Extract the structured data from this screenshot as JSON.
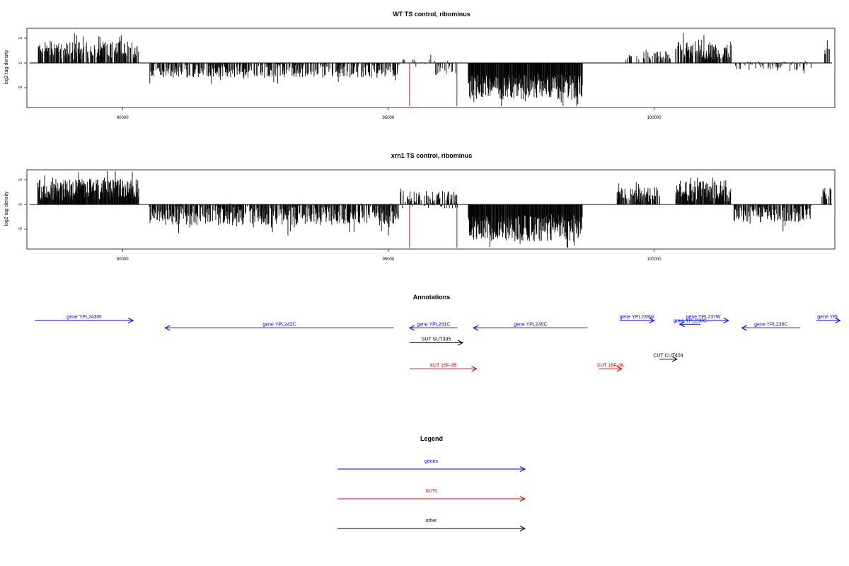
{
  "chart_data": [
    {
      "type": "bar",
      "title": "WT TS control, ribominus",
      "xlabel": "",
      "ylabel": "log2 tag density",
      "xlim": [
        88200,
        103400
      ],
      "ylim": [
        -9,
        7
      ],
      "xticks": [
        90000,
        95000,
        100000
      ],
      "xtick_labels": [
        "90000",
        "95000",
        "100000"
      ],
      "yticks": [
        -5,
        0,
        5
      ],
      "ytick_labels": [
        "-5",
        "0",
        "5"
      ],
      "baseline": [
        88250,
        103350
      ],
      "segments": [
        {
          "from": 88400,
          "to": 90300,
          "mean": 2.5,
          "amp": 1.8,
          "density": 0.7
        },
        {
          "from": 90500,
          "to": 95200,
          "mean": -1.5,
          "amp": 1.5,
          "density": 0.55
        },
        {
          "from": 95200,
          "to": 95400,
          "mean": 0.2,
          "amp": 0.6,
          "density": 0.15
        },
        {
          "from": 95400,
          "to": 95850,
          "mean": 0.5,
          "amp": 1.2,
          "density": 0.15
        },
        {
          "from": 95850,
          "to": 96300,
          "mean": -1.0,
          "amp": 1.5,
          "density": 0.35
        },
        {
          "from": 96500,
          "to": 98650,
          "mean": -4.8,
          "amp": 2.6,
          "density": 1.0
        },
        {
          "from": 99300,
          "to": 99800,
          "mean": 1.1,
          "amp": 0.6,
          "density": 0.25
        },
        {
          "from": 99800,
          "to": 100300,
          "mean": 1.6,
          "amp": 1.2,
          "density": 0.4
        },
        {
          "from": 100400,
          "to": 101450,
          "mean": 2.5,
          "amp": 1.8,
          "density": 0.7
        },
        {
          "from": 101500,
          "to": 102950,
          "mean": -0.6,
          "amp": 1.0,
          "density": 0.35
        },
        {
          "from": 103200,
          "to": 103330,
          "mean": 2.2,
          "amp": 1.3,
          "density": 0.5
        }
      ],
      "markers": [
        {
          "x": 95400,
          "y": -9,
          "color": "#e00000"
        },
        {
          "x": 96290,
          "y": -9,
          "color": "#e00000"
        }
      ],
      "bar_color": "#000000"
    },
    {
      "type": "bar",
      "title": "xrn1 TS control, ribominus",
      "xlabel": "",
      "ylabel": "log2 tag density",
      "xlim": [
        88200,
        103400
      ],
      "ylim": [
        -9,
        7
      ],
      "xticks": [
        90000,
        95000,
        100000
      ],
      "xtick_labels": [
        "90000",
        "95000",
        "100000"
      ],
      "yticks": [
        -5,
        0,
        5
      ],
      "ytick_labels": [
        "-5",
        "0",
        "5"
      ],
      "baseline": [
        88250,
        103350
      ],
      "segments": [
        {
          "from": 88400,
          "to": 90300,
          "mean": 3.0,
          "amp": 2.2,
          "density": 1.0
        },
        {
          "from": 90500,
          "to": 95200,
          "mean": -2.0,
          "amp": 2.2,
          "density": 0.8
        },
        {
          "from": 95200,
          "to": 96300,
          "mean": 1.0,
          "amp": 1.8,
          "density": 0.5
        },
        {
          "from": 96500,
          "to": 98650,
          "mean": -4.8,
          "amp": 2.8,
          "density": 1.0
        },
        {
          "from": 99300,
          "to": 100100,
          "mean": 2.0,
          "amp": 1.5,
          "density": 0.7
        },
        {
          "from": 100400,
          "to": 101450,
          "mean": 2.8,
          "amp": 2.2,
          "density": 0.9
        },
        {
          "from": 101500,
          "to": 102950,
          "mean": -1.8,
          "amp": 1.8,
          "density": 0.75
        },
        {
          "from": 103150,
          "to": 103330,
          "mean": 2.2,
          "amp": 1.3,
          "density": 0.6
        }
      ],
      "markers": [
        {
          "x": 95400,
          "y": -9,
          "color": "#e00000"
        },
        {
          "x": 96290,
          "y": -9,
          "color": "#e00000"
        }
      ],
      "bar_color": "#000000"
    }
  ],
  "annotations": {
    "title": "Annotations",
    "tracks": [
      {
        "label": "gene YPL243W",
        "from": 88350,
        "to": 90200,
        "row": 0,
        "dir": "right",
        "color": "#0000ff"
      },
      {
        "label": "gene YPL242C",
        "from": 90800,
        "to": 95100,
        "row": 1,
        "dir": "left",
        "color": "#0000ff"
      },
      {
        "label": "gene YPL241C",
        "from": 95400,
        "to": 96300,
        "row": 1,
        "dir": "left",
        "color": "#0000ff"
      },
      {
        "label": "gene YPL240C",
        "from": 96600,
        "to": 98750,
        "row": 1,
        "dir": "left",
        "color": "#0000ff"
      },
      {
        "label": "gene YPL239W",
        "from": 99350,
        "to": 100000,
        "row": 0,
        "dir": "right",
        "color": "#0000ff"
      },
      {
        "label": "gene YPL237W",
        "from": 100450,
        "to": 101400,
        "row": 0,
        "dir": "right",
        "color": "#0000ff"
      },
      {
        "label": "gene YPL238C",
        "from": 100480,
        "to": 100870,
        "row": 0.5,
        "dir": "left",
        "color": "#0000ff"
      },
      {
        "label": "gene YPL236C",
        "from": 101650,
        "to": 102750,
        "row": 1,
        "dir": "left",
        "color": "#0000ff"
      },
      {
        "label": "gene YPL",
        "from": 103050,
        "to": 103500,
        "row": 0,
        "dir": "right",
        "color": "#0000ff"
      },
      {
        "label": "SUT SUT395",
        "from": 95400,
        "to": 96400,
        "row": 3,
        "dir": "right",
        "color": "#000000"
      },
      {
        "label": "CUT CUT404",
        "from": 100100,
        "to": 100430,
        "row": 5.2,
        "dir": "right",
        "color": "#000000"
      },
      {
        "label": "XUT 16F-35",
        "from": 95400,
        "to": 96660,
        "row": 6.5,
        "dir": "right",
        "color": "#e00000"
      },
      {
        "label": "XUT 16F-36",
        "from": 98960,
        "to": 99390,
        "row": 6.5,
        "dir": "right",
        "color": "#e00000"
      }
    ]
  },
  "legend": {
    "title": "Legend",
    "items": [
      {
        "label": "genes",
        "color": "#0000ff"
      },
      {
        "label": "XUTs",
        "color": "#e00000"
      },
      {
        "label": "other",
        "color": "#000000"
      }
    ]
  }
}
